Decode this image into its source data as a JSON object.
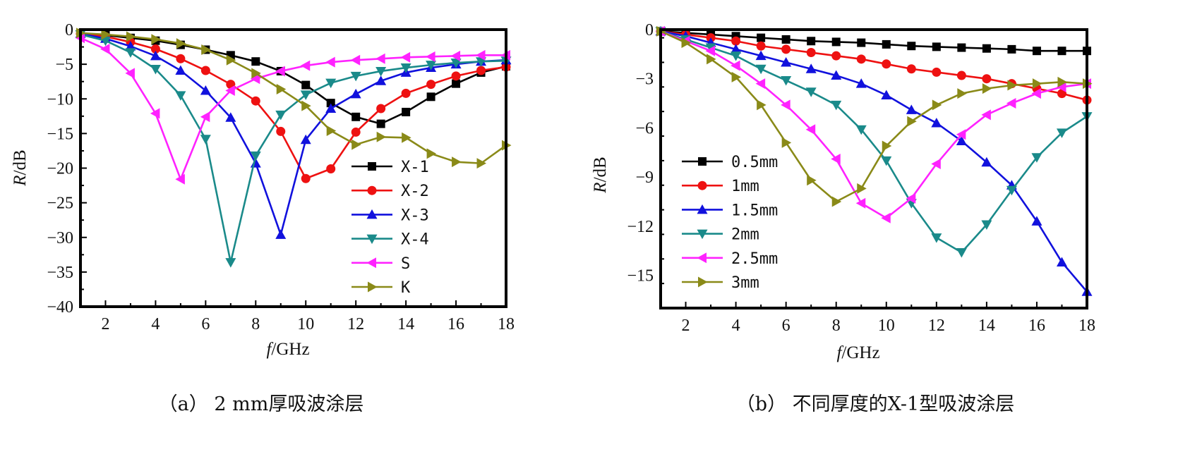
{
  "chart_data": [
    {
      "type": "line",
      "caption": "（a） 2 mm厚吸波涂层",
      "xlabel_italic": "f",
      "xlabel_rest": "/GHz",
      "ylabel_italic": "R",
      "ylabel_rest": "/dB",
      "xlim": [
        1,
        18
      ],
      "ylim": [
        -40,
        0
      ],
      "xticks": [
        2,
        4,
        6,
        8,
        10,
        12,
        14,
        16,
        18
      ],
      "yticks": [
        0,
        -5,
        -10,
        -15,
        -20,
        -25,
        -30,
        -35,
        -40
      ],
      "ytick_labels": [
        "0",
        "−5",
        "−10",
        "−15",
        "−20",
        "−25",
        "−30",
        "−35",
        "−40"
      ],
      "legend_position": "lower-right",
      "x": [
        1,
        2,
        3,
        4,
        5,
        6,
        7,
        8,
        9,
        10,
        11,
        12,
        13,
        14,
        15,
        16,
        17,
        18
      ],
      "series": [
        {
          "name": "X-1",
          "color": "#000000",
          "marker": "square",
          "values": [
            -0.5,
            -0.8,
            -1.2,
            -1.6,
            -2.2,
            -2.9,
            -3.7,
            -4.6,
            -6.0,
            -8.0,
            -10.6,
            -12.6,
            -13.6,
            -11.9,
            -9.7,
            -7.8,
            -6.2,
            -5.3
          ]
        },
        {
          "name": "X-2",
          "color": "#ee1111",
          "marker": "circle",
          "values": [
            -0.6,
            -1.0,
            -1.8,
            -2.8,
            -4.2,
            -5.9,
            -7.9,
            -10.3,
            -14.7,
            -21.5,
            -20.1,
            -14.8,
            -11.4,
            -9.2,
            -7.9,
            -6.7,
            -5.9,
            -5.4
          ]
        },
        {
          "name": "X-3",
          "color": "#1111dd",
          "marker": "triangle-up",
          "values": [
            -0.6,
            -1.3,
            -2.4,
            -3.8,
            -5.9,
            -8.8,
            -12.7,
            -19.3,
            -29.6,
            -15.9,
            -11.4,
            -9.3,
            -7.4,
            -6.2,
            -5.5,
            -5.0,
            -4.6,
            -4.4
          ]
        },
        {
          "name": "X-4",
          "color": "#1a8a8a",
          "marker": "triangle-down",
          "values": [
            -0.7,
            -1.6,
            -3.3,
            -5.7,
            -9.5,
            -15.8,
            -33.6,
            -18.2,
            -12.3,
            -9.4,
            -7.7,
            -6.7,
            -6.0,
            -5.5,
            -5.1,
            -4.8,
            -4.6,
            -4.5
          ]
        },
        {
          "name": "S",
          "color": "#ff22ff",
          "marker": "triangle-left",
          "values": [
            -1.2,
            -2.8,
            -6.3,
            -12.1,
            -21.6,
            -12.6,
            -8.8,
            -7.1,
            -6.0,
            -5.2,
            -4.7,
            -4.4,
            -4.2,
            -4.0,
            -3.9,
            -3.8,
            -3.7,
            -3.7
          ]
        },
        {
          "name": "K",
          "color": "#8a8a18",
          "marker": "triangle-right",
          "values": [
            -0.5,
            -0.7,
            -1.0,
            -1.4,
            -2.0,
            -2.9,
            -4.4,
            -6.3,
            -8.6,
            -11.0,
            -14.6,
            -16.6,
            -15.5,
            -15.6,
            -17.9,
            -19.1,
            -19.3,
            -16.7
          ]
        }
      ]
    },
    {
      "type": "line",
      "caption": "（b） 不同厚度的X-1型吸波涂层",
      "xlabel_italic": "f",
      "xlabel_rest": "/GHz",
      "ylabel_italic": "R",
      "ylabel_rest": "/dB",
      "xlim": [
        1,
        18
      ],
      "ylim": [
        -17,
        0
      ],
      "xticks": [
        2,
        4,
        6,
        8,
        10,
        12,
        14,
        16,
        18
      ],
      "yticks": [
        0,
        -3,
        -6,
        -9,
        -12,
        -15
      ],
      "ytick_labels": [
        "0",
        "−3",
        "−6",
        "−9",
        "−12",
        "−15"
      ],
      "legend_position": "lower-left",
      "x": [
        1,
        2,
        3,
        4,
        5,
        6,
        7,
        8,
        9,
        10,
        11,
        12,
        13,
        14,
        15,
        16,
        17,
        18
      ],
      "series": [
        {
          "name": "0.5mm",
          "color": "#000000",
          "marker": "square",
          "values": [
            -0.1,
            -0.2,
            -0.3,
            -0.4,
            -0.5,
            -0.6,
            -0.7,
            -0.75,
            -0.8,
            -0.9,
            -1.0,
            -1.05,
            -1.1,
            -1.15,
            -1.2,
            -1.3,
            -1.3,
            -1.3
          ]
        },
        {
          "name": "1mm",
          "color": "#ee1111",
          "marker": "circle",
          "values": [
            -0.1,
            -0.3,
            -0.5,
            -0.7,
            -1.0,
            -1.2,
            -1.4,
            -1.6,
            -1.8,
            -2.1,
            -2.4,
            -2.6,
            -2.8,
            -3.0,
            -3.3,
            -3.6,
            -3.9,
            -4.3
          ]
        },
        {
          "name": "1.5mm",
          "color": "#1111dd",
          "marker": "triangle-up",
          "values": [
            -0.1,
            -0.4,
            -0.8,
            -1.2,
            -1.6,
            -2.0,
            -2.4,
            -2.8,
            -3.3,
            -4.0,
            -4.9,
            -5.7,
            -6.8,
            -8.1,
            -9.5,
            -11.7,
            -14.2,
            -16.0
          ]
        },
        {
          "name": "2mm",
          "color": "#1a8a8a",
          "marker": "triangle-down",
          "values": [
            -0.1,
            -0.6,
            -1.1,
            -1.6,
            -2.4,
            -3.1,
            -3.8,
            -4.6,
            -6.1,
            -8.0,
            -10.6,
            -12.7,
            -13.6,
            -11.9,
            -9.8,
            -7.8,
            -6.3,
            -5.3
          ]
        },
        {
          "name": "2.5mm",
          "color": "#ff22ff",
          "marker": "triangle-left",
          "values": [
            -0.1,
            -0.7,
            -1.3,
            -2.2,
            -3.3,
            -4.6,
            -6.1,
            -7.9,
            -10.6,
            -11.5,
            -10.3,
            -8.2,
            -6.4,
            -5.2,
            -4.5,
            -3.9,
            -3.5,
            -3.3
          ]
        },
        {
          "name": "3mm",
          "color": "#8a8a18",
          "marker": "triangle-right",
          "values": [
            -0.1,
            -0.8,
            -1.8,
            -2.9,
            -4.6,
            -6.9,
            -9.2,
            -10.5,
            -9.7,
            -7.1,
            -5.6,
            -4.6,
            -3.9,
            -3.6,
            -3.4,
            -3.3,
            -3.2,
            -3.3
          ]
        }
      ]
    }
  ]
}
